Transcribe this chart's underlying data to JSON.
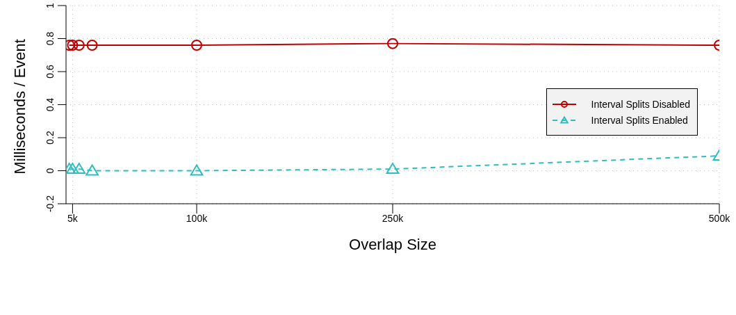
{
  "chart_data": {
    "type": "line",
    "xlabel": "Overlap Size",
    "ylabel": "Milliseconds / Event",
    "x": [
      2500,
      5000,
      10000,
      20000,
      100000,
      250000,
      500000
    ],
    "series": [
      {
        "name": "Interval Splits Disabled",
        "color": "#c00000",
        "marker": "circle",
        "line_style": "solid",
        "values": [
          0.76,
          0.76,
          0.76,
          0.76,
          0.76,
          0.77,
          0.76
        ]
      },
      {
        "name": "Interval Splits Enabled",
        "color": "#2cbdbf",
        "marker": "triangle",
        "line_style": "dashed",
        "values": [
          0.01,
          0.01,
          0.01,
          0.0,
          0.0,
          0.01,
          0.09
        ]
      }
    ],
    "xlim": [
      0,
      500000
    ],
    "xticks": [
      {
        "value": 5000,
        "label": "5k"
      },
      {
        "value": 100000,
        "label": "100k"
      },
      {
        "value": 250000,
        "label": "250k"
      },
      {
        "value": 500000,
        "label": "500k"
      }
    ],
    "ylim": [
      -0.2,
      1
    ],
    "yticks": [
      -0.2,
      0,
      0.2,
      0.4,
      0.6,
      0.8,
      1
    ],
    "grid": true,
    "legend": "right"
  }
}
